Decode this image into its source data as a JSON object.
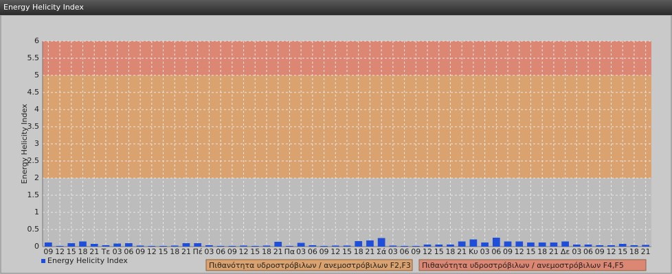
{
  "chart_data": {
    "type": "bar",
    "title": "Energy Helicity Index",
    "ylabel": "Energy Helicity Index",
    "categories": [
      "09",
      "12",
      "15",
      "18",
      "21",
      "Τε",
      "03",
      "06",
      "09",
      "12",
      "15",
      "18",
      "21",
      "Πέ",
      "03",
      "06",
      "09",
      "12",
      "15",
      "18",
      "21",
      "Πα",
      "03",
      "06",
      "09",
      "12",
      "15",
      "18",
      "21",
      "Σά",
      "03",
      "06",
      "09",
      "12",
      "15",
      "18",
      "21",
      "Κυ",
      "03",
      "06",
      "09",
      "12",
      "15",
      "18",
      "21",
      "Δε",
      "03",
      "06",
      "09",
      "12",
      "15",
      "18",
      "21"
    ],
    "series": [
      {
        "name": "Energy Helicity Index",
        "color": "#1f4fd8",
        "values": [
          0.12,
          0.02,
          0.1,
          0.15,
          0.08,
          0.04,
          0.09,
          0.1,
          0.03,
          0.02,
          0.02,
          0.03,
          0.1,
          0.1,
          0.04,
          0.02,
          0.02,
          0.03,
          0.02,
          0.03,
          0.14,
          0.02,
          0.11,
          0.04,
          0.02,
          0.03,
          0.03,
          0.16,
          0.18,
          0.25,
          0.03,
          0.02,
          0.02,
          0.06,
          0.06,
          0.06,
          0.15,
          0.21,
          0.12,
          0.26,
          0.15,
          0.15,
          0.12,
          0.12,
          0.12,
          0.15,
          0.06,
          0.06,
          0.04,
          0.04,
          0.08,
          0.04,
          0.05
        ]
      }
    ],
    "bands": [
      {
        "from": 2,
        "to": 5,
        "color": "#d9a26e",
        "label": "Πιθανότητα υδροστρόβιλων / ανεμοστρόβιλων F2,F3"
      },
      {
        "from": 5,
        "to": 6,
        "color": "#db8773",
        "label": "Πιθανότητα υδροστρόβιλων / ανεμοστρόβιλων F4,F5"
      }
    ],
    "ylim": [
      0,
      6
    ],
    "yticks": [
      0,
      0.5,
      1,
      1.5,
      2,
      2.5,
      3,
      3.5,
      4,
      4.5,
      5,
      5.5,
      6
    ],
    "grid": true
  }
}
